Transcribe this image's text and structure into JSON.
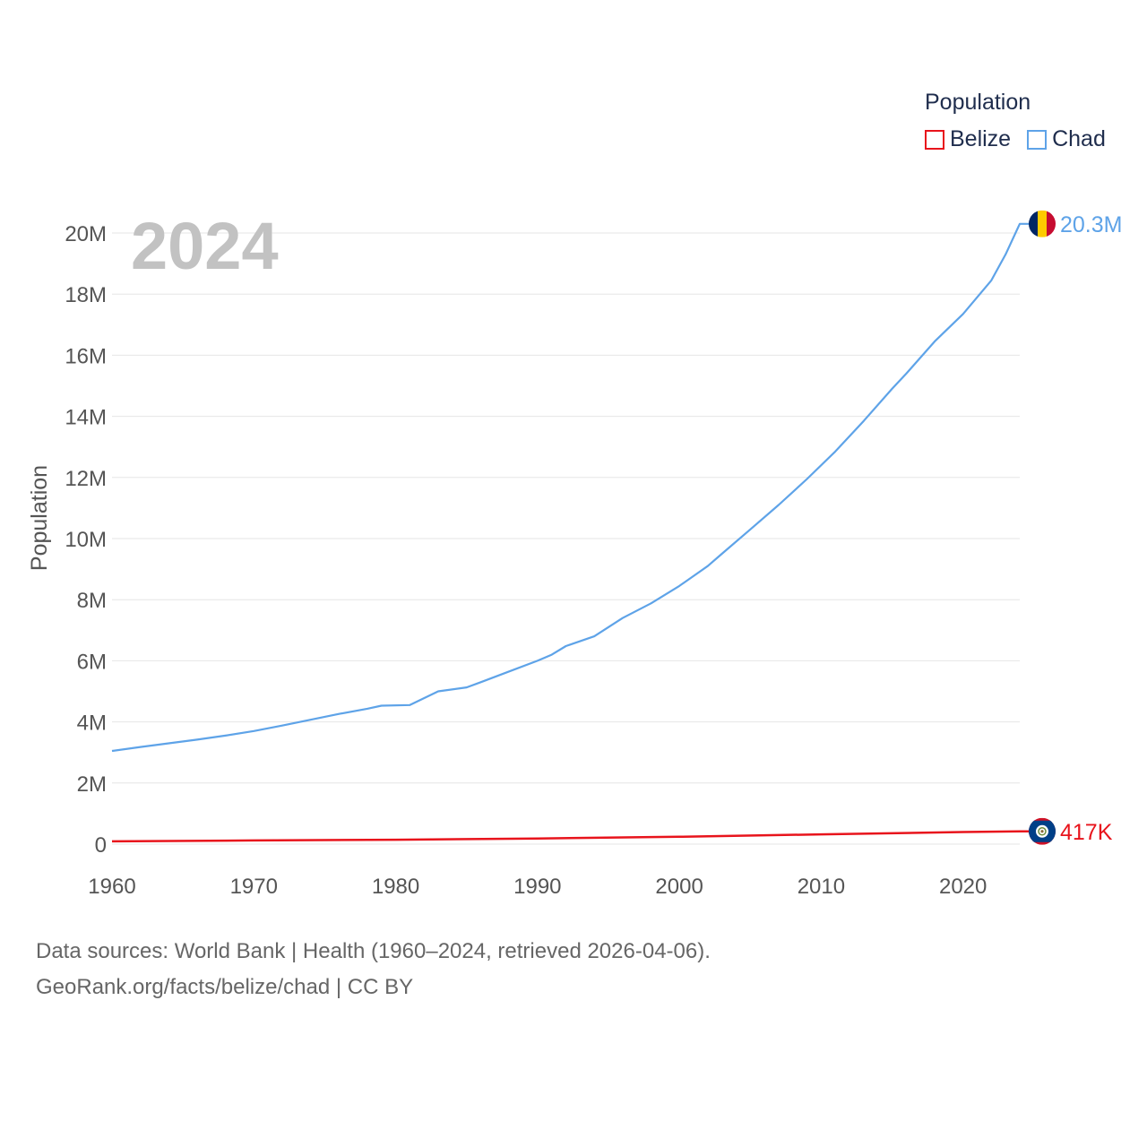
{
  "legend": {
    "title": "Population",
    "items": [
      {
        "name": "Belize",
        "color": "#e8141c"
      },
      {
        "name": "Chad",
        "color": "#5ea3e8"
      }
    ]
  },
  "source": {
    "line1": "Data sources: World Bank | Health (1960–2024, retrieved 2026-04-06).",
    "line2": "GeoRank.org/facts/belize/chad | CC BY"
  },
  "chart_data": {
    "type": "line",
    "title": "",
    "year_label": "2024",
    "xlabel": "",
    "ylabel": "Population",
    "xlim": [
      1960,
      2024
    ],
    "ylim": [
      0,
      20000000
    ],
    "x_ticks": [
      1960,
      1970,
      1980,
      1990,
      2000,
      2010,
      2020
    ],
    "y_ticks": [
      {
        "value": 0,
        "label": "0"
      },
      {
        "value": 2000000,
        "label": "2M"
      },
      {
        "value": 4000000,
        "label": "4M"
      },
      {
        "value": 6000000,
        "label": "6M"
      },
      {
        "value": 8000000,
        "label": "8M"
      },
      {
        "value": 10000000,
        "label": "10M"
      },
      {
        "value": 12000000,
        "label": "12M"
      },
      {
        "value": 14000000,
        "label": "14M"
      },
      {
        "value": 16000000,
        "label": "16M"
      },
      {
        "value": 18000000,
        "label": "18M"
      },
      {
        "value": 20000000,
        "label": "20M"
      }
    ],
    "grid": true,
    "legend_position": "top-right",
    "series": [
      {
        "name": "Chad",
        "color": "#5ea3e8",
        "end_label": "20.3M",
        "flag": "chad-flag",
        "x": [
          1960,
          1962,
          1964,
          1966,
          1968,
          1970,
          1972,
          1974,
          1976,
          1978,
          1979,
          1981,
          1983,
          1985,
          1986,
          1988,
          1990,
          1991,
          1992,
          1994,
          1996,
          1998,
          2000,
          2002,
          2003,
          2005,
          2007,
          2009,
          2011,
          2013,
          2015,
          2016,
          2018,
          2020,
          2022,
          2023,
          2024
        ],
        "values": [
          3050000,
          3180000,
          3300000,
          3420000,
          3550000,
          3700000,
          3880000,
          4070000,
          4260000,
          4430000,
          4530000,
          4550000,
          5000000,
          5130000,
          5300000,
          5650000,
          6000000,
          6200000,
          6480000,
          6800000,
          7400000,
          7880000,
          8450000,
          9100000,
          9500000,
          10300000,
          11100000,
          11950000,
          12850000,
          13850000,
          14900000,
          15400000,
          16450000,
          17350000,
          18450000,
          19300000,
          20300000
        ]
      },
      {
        "name": "Belize",
        "color": "#e8141c",
        "end_label": "417K",
        "flag": "belize-flag",
        "x": [
          1960,
          1970,
          1980,
          1990,
          2000,
          2010,
          2020,
          2024
        ],
        "values": [
          92000,
          120000,
          145000,
          185000,
          240000,
          320000,
          395000,
          417000
        ]
      }
    ]
  }
}
